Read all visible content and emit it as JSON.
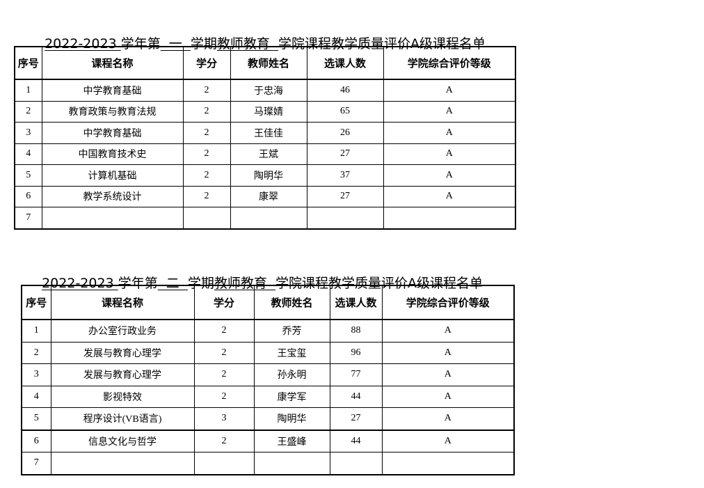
{
  "tables": [
    {
      "title": {
        "year": "2022-2023 ",
        "p1": "学年第",
        "semester": "  一  ",
        "p2": "学期",
        "college": "教师教育  ",
        "p3": "学院课程教学质量评价A级课程名单"
      },
      "headers": [
        "序号",
        "课程名称",
        "学分",
        "教师姓名",
        "选课人数",
        "学院综合评价等级"
      ],
      "rows": [
        [
          "1",
          "中学教育基础",
          "2",
          "于忠海",
          "46",
          "A"
        ],
        [
          "2",
          "教育政策与教育法规",
          "2",
          "马璨婧",
          "65",
          "A"
        ],
        [
          "3",
          "中学教育基础",
          "2",
          "王佳佳",
          "26",
          "A"
        ],
        [
          "4",
          "中国教育技术史",
          "2",
          "王斌",
          "27",
          "A"
        ],
        [
          "5",
          "计算机基础",
          "2",
          "陶明华",
          "37",
          "A"
        ],
        [
          "6",
          "教学系统设计",
          "2",
          "康翠",
          "27",
          "A"
        ],
        [
          "7",
          "",
          "",
          "",
          "",
          ""
        ]
      ]
    },
    {
      "title": {
        "year": "2022-2023 ",
        "p1": "学年第",
        "semester": "  二  ",
        "p2": "学期",
        "college": "教师教育  ",
        "p3": "学院课程教学质量评价A级课程名单"
      },
      "headers": [
        "序号",
        "课程名称",
        "学分",
        "教师姓名",
        "选课人数",
        "学院综合评价等级"
      ],
      "rows": [
        [
          "1",
          "办公室行政业务",
          "2",
          "乔芳",
          "88",
          "A"
        ],
        [
          "2",
          "发展与教育心理学",
          "2",
          "王宝玺",
          "96",
          "A"
        ],
        [
          "3",
          "发展与教育心理学",
          "2",
          "孙永明",
          "77",
          "A"
        ],
        [
          "4",
          "影视特效",
          "2",
          "康学军",
          "44",
          "A"
        ],
        [
          "5",
          "程序设计(VB语言)",
          "3",
          "陶明华",
          "27",
          "A"
        ],
        [
          "6",
          "信息文化与哲学",
          "2",
          "王盛峰",
          "44",
          "A"
        ],
        [
          "7",
          "",
          "",
          "",
          "",
          ""
        ]
      ]
    }
  ]
}
